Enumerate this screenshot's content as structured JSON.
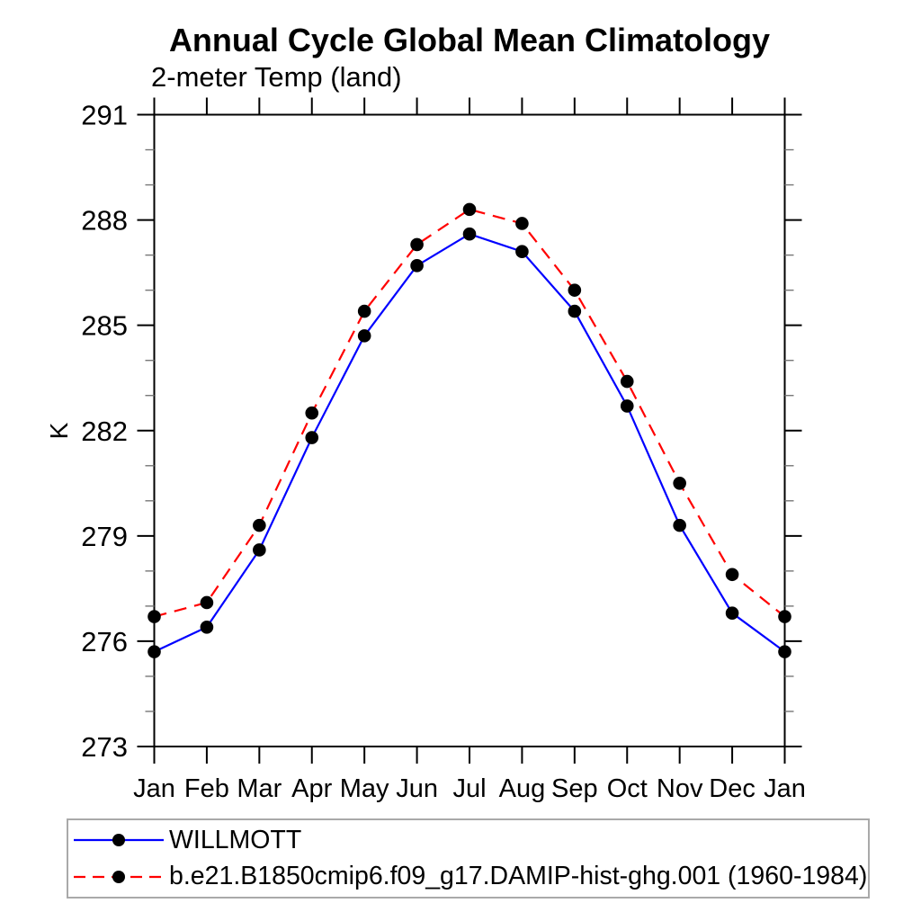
{
  "title": "Annual Cycle Global Mean Climatology",
  "subtitle": "2-meter Temp (land)",
  "chart_data": {
    "type": "line",
    "title": "Annual Cycle Global Mean Climatology",
    "subtitle": "2-meter Temp (land)",
    "xlabel": "",
    "ylabel": "K",
    "ylim": [
      273,
      291
    ],
    "y_major_ticks": [
      273,
      276,
      279,
      282,
      285,
      288,
      291
    ],
    "y_minor_step": 1,
    "grid": false,
    "legend_position": "bottom-box",
    "background": "#ffffff",
    "axis_color": "#000000",
    "categories": [
      "Jan",
      "Feb",
      "Mar",
      "Apr",
      "May",
      "Jun",
      "Jul",
      "Aug",
      "Sep",
      "Oct",
      "Nov",
      "Dec",
      "Jan"
    ],
    "series": [
      {
        "name": "WILLMOTT",
        "color": "#0000ff",
        "line_style": "solid",
        "marker": "filled-circle",
        "marker_color": "#000000",
        "values": [
          275.7,
          276.4,
          278.6,
          281.8,
          284.7,
          286.7,
          287.6,
          287.1,
          285.4,
          282.7,
          279.3,
          276.8,
          275.7
        ]
      },
      {
        "name": "b.e21.B1850cmip6.f09_g17.DAMIP-hist-ghg.001 (1960-1984)",
        "color": "#ff0000",
        "line_style": "dashed",
        "marker": "filled-circle",
        "marker_color": "#000000",
        "values": [
          276.7,
          277.1,
          279.3,
          282.5,
          285.4,
          287.3,
          288.3,
          287.9,
          286.0,
          283.4,
          280.5,
          277.9,
          276.7
        ]
      }
    ]
  }
}
